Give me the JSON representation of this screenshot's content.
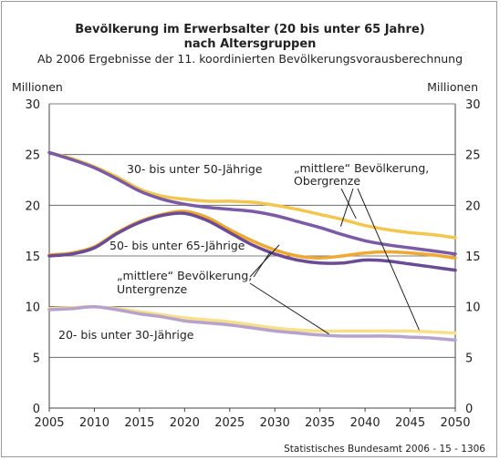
{
  "chart_data": {
    "type": "line",
    "title": "Bevölkerung im Erwerbsalter (20 bis unter 65 Jahre)",
    "title_line2": "nach Altersgruppen",
    "subtitle": "Ab 2006 Ergebnisse der 11. koordinierten Bevölkerungsvorausberechnung",
    "ylabel_left": "Millionen",
    "ylabel_right": "Millionen",
    "xlim": [
      2005,
      2050
    ],
    "ylim": [
      0,
      30
    ],
    "xticks": [
      "2005",
      "2010",
      "2015",
      "2020",
      "2025",
      "2030",
      "2035",
      "2040",
      "2045",
      "2050"
    ],
    "yticks": [
      "0",
      "5",
      "10",
      "15",
      "20",
      "25",
      "30"
    ],
    "grid": "horizontal",
    "x": [
      2005,
      2007.5,
      2010,
      2012.5,
      2015,
      2017.5,
      2020,
      2022.5,
      2025,
      2027.5,
      2030,
      2032.5,
      2035,
      2037.5,
      2040,
      2042.5,
      2045,
      2047.5,
      2050
    ],
    "series": [
      {
        "group": "30-50",
        "variant": "obergrenze",
        "color": "#f3c650",
        "width": 3.5,
        "values": [
          25.2,
          24.6,
          23.8,
          22.8,
          21.6,
          20.9,
          20.6,
          20.4,
          20.4,
          20.3,
          20.0,
          19.6,
          19.1,
          18.6,
          18.0,
          17.6,
          17.3,
          17.1,
          16.8
        ]
      },
      {
        "group": "30-50",
        "variant": "untergrenze",
        "color": "#7b5aa6",
        "width": 3.5,
        "values": [
          25.2,
          24.5,
          23.7,
          22.6,
          21.4,
          20.6,
          20.1,
          19.8,
          19.6,
          19.4,
          19.0,
          18.4,
          17.8,
          17.1,
          16.5,
          16.1,
          15.8,
          15.5,
          15.2
        ]
      },
      {
        "group": "50-65",
        "variant": "obergrenze",
        "color": "#f0a830",
        "width": 3.5,
        "values": [
          15.1,
          15.3,
          15.9,
          17.3,
          18.4,
          19.1,
          19.4,
          18.8,
          17.6,
          16.5,
          15.6,
          15.0,
          14.8,
          15.0,
          15.3,
          15.4,
          15.3,
          15.1,
          14.8
        ]
      },
      {
        "group": "50-65",
        "variant": "untergrenze",
        "color": "#6a4c96",
        "width": 3.5,
        "values": [
          15.0,
          15.2,
          15.8,
          17.2,
          18.3,
          19.0,
          19.2,
          18.5,
          17.3,
          16.1,
          15.2,
          14.6,
          14.3,
          14.3,
          14.6,
          14.5,
          14.2,
          13.9,
          13.6
        ]
      },
      {
        "group": "20-30",
        "variant": "obergrenze",
        "color": "#f7e08a",
        "width": 3.5,
        "values": [
          9.8,
          9.9,
          10.0,
          9.8,
          9.5,
          9.2,
          8.9,
          8.7,
          8.5,
          8.2,
          7.9,
          7.7,
          7.6,
          7.6,
          7.6,
          7.6,
          7.6,
          7.5,
          7.4
        ]
      },
      {
        "group": "20-30",
        "variant": "untergrenze",
        "color": "#b7a2cf",
        "width": 3.5,
        "values": [
          9.7,
          9.8,
          10.0,
          9.7,
          9.3,
          9.0,
          8.6,
          8.4,
          8.2,
          7.9,
          7.6,
          7.4,
          7.2,
          7.1,
          7.1,
          7.1,
          7.0,
          6.9,
          6.7
        ]
      }
    ],
    "annotations": {
      "label_30_50": "30- bis unter 50-Jährige",
      "label_50_65": "50- bis unter 65-Jährige",
      "label_20_30": "20- bis unter 30-Jährige",
      "ober_line1": "„mittlere“ Bevölkerung,",
      "ober_line2": "Obergrenze",
      "unter_line1": "„mittlere“ Bevölkerung,",
      "unter_line2": "Untergrenze"
    },
    "source": "Statistisches Bundesamt 2006 - 15 - 1306"
  }
}
